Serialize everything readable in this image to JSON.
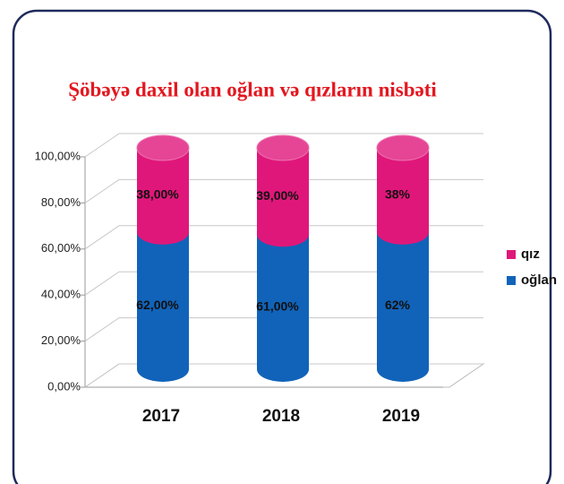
{
  "chart_data": {
    "type": "stacked-cylinder",
    "title": "Şöbəyə daxil olan oğlan və qızların nisbəti",
    "categories": [
      "2017",
      "2018",
      "2019"
    ],
    "series": [
      {
        "name": "qız",
        "color": "#e0177a",
        "values": [
          38,
          39,
          38
        ],
        "value_labels": [
          "38,00%",
          "39,00%",
          "38%"
        ]
      },
      {
        "name": "oğlan",
        "color": "#1163b9",
        "values": [
          62,
          61,
          62
        ],
        "value_labels": [
          "62,00%",
          "61,00%",
          "62%"
        ]
      }
    ],
    "ylim": [
      0,
      100
    ],
    "yticks": [
      {
        "value": 0,
        "label": "0,00%"
      },
      {
        "value": 20,
        "label": "20,00%"
      },
      {
        "value": 40,
        "label": "40,00%"
      },
      {
        "value": 60,
        "label": "60,00%"
      },
      {
        "value": 80,
        "label": "80,00%"
      },
      {
        "value": 100,
        "label": "100,00%"
      }
    ],
    "grid": true,
    "legend": "right"
  }
}
